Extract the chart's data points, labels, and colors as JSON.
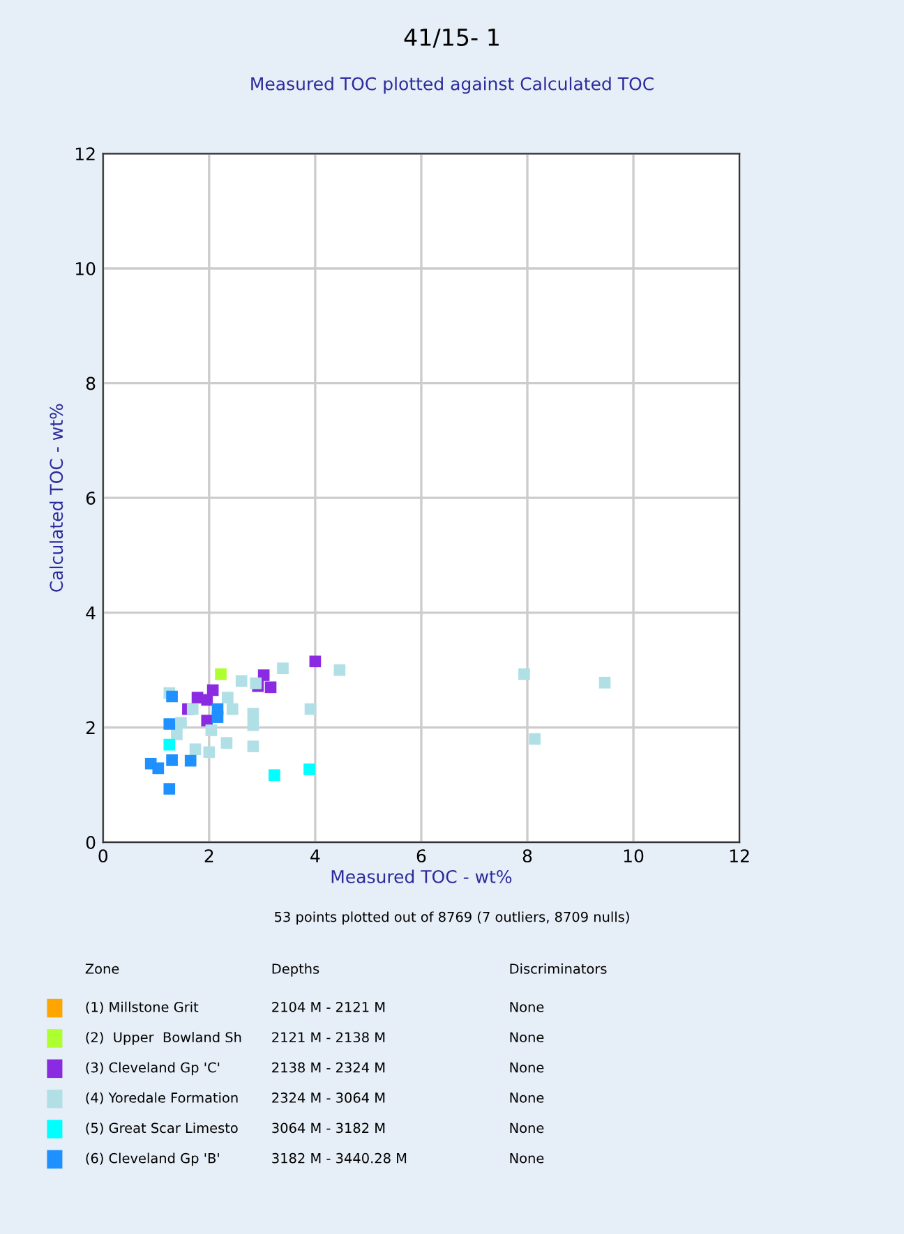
{
  "chart_data": {
    "type": "scatter",
    "title": "41/15- 1",
    "subtitle": "Measured TOC plotted against Calculated TOC",
    "xlabel": "Measured TOC - wt%",
    "ylabel": "Calculated TOC - wt%",
    "xlim": [
      0,
      12
    ],
    "ylim": [
      0,
      12
    ],
    "xticks": [
      0,
      2,
      4,
      6,
      8,
      10,
      12
    ],
    "yticks": [
      0,
      2,
      4,
      6,
      8,
      10,
      12
    ],
    "grid": true,
    "marker": "square",
    "legend": "bottom",
    "annotations": [
      "53 points plotted out of 8769 (7 outliers, 8709 nulls)",
      "Zone",
      "Depths",
      "Discriminators",
      "2104 M - 2121 M",
      "None",
      "2121 M - 2138 M",
      "None",
      "2138 M - 2324 M",
      "None",
      "2324 M - 3064 M",
      "None",
      "3064 M - 3182 M",
      "None",
      "3182 M - 3440.28 M",
      "None"
    ],
    "series": [
      {
        "name": "(1) Millstone Grit",
        "color": "#ffa500"
      },
      {
        "name": "(2)  Upper  Bowland Sh",
        "color": "#adff2f",
        "x": [
          2.22
        ],
        "values": [
          2.93
        ]
      },
      {
        "name": "(3) Cleveland Gp 'C'",
        "color": "#8a2be2",
        "x": [
          4.0,
          3.03,
          3.16,
          2.92,
          2.07,
          1.78,
          1.96,
          1.6,
          1.96
        ],
        "values": [
          3.15,
          2.91,
          2.7,
          2.72,
          2.65,
          2.52,
          2.48,
          2.32,
          2.12
        ]
      },
      {
        "name": "(4) Yoredale Formation",
        "color": "#b0e0e6",
        "x": [
          3.39,
          4.46,
          2.61,
          2.88,
          1.25,
          2.35,
          2.44,
          1.69,
          2.83,
          3.91,
          1.47,
          2.83,
          2.04,
          1.39,
          2.33,
          2.83,
          1.74,
          2.0,
          7.94,
          9.46,
          8.14
        ],
        "values": [
          3.03,
          3.0,
          2.81,
          2.77,
          2.6,
          2.52,
          2.32,
          2.32,
          2.24,
          2.32,
          2.08,
          2.04,
          1.95,
          1.88,
          1.73,
          1.67,
          1.62,
          1.57,
          2.93,
          2.78,
          1.8
        ]
      },
      {
        "name": "(5) Great Scar Limesto",
        "color": "#00ffff",
        "x": [
          1.25,
          3.23,
          3.89
        ],
        "values": [
          1.7,
          1.17,
          1.27
        ]
      },
      {
        "name": "(6) Cleveland Gp 'B'",
        "color": "#1e90ff",
        "x": [
          1.3,
          1.25,
          2.16,
          2.16,
          0.9,
          1.04,
          1.3,
          1.65,
          1.25
        ],
        "values": [
          2.54,
          2.06,
          2.32,
          2.18,
          1.37,
          1.29,
          1.43,
          1.42,
          0.93
        ]
      }
    ]
  }
}
